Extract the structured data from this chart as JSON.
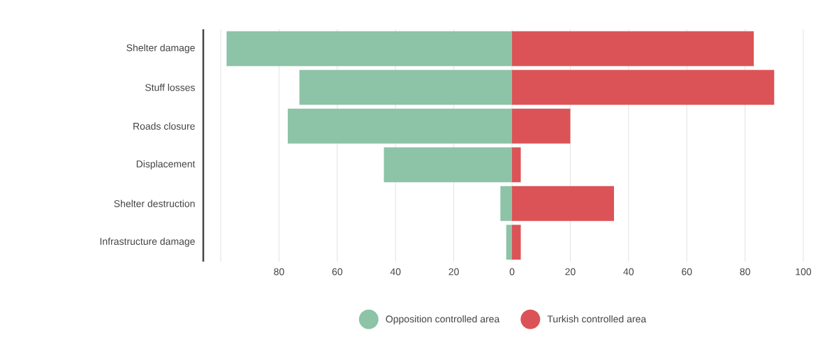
{
  "chart_data": {
    "type": "bar",
    "orientation": "horizontal",
    "stacked": true,
    "categories": [
      "Shelter damage",
      "Stuff losses",
      "Roads closure",
      "Displacement",
      "Shelter destruction",
      "Infrastructure damage"
    ],
    "series": [
      {
        "name": "Opposition controlled area",
        "color": "#8dc3a7",
        "values": [
          -98,
          -73,
          -77,
          -44,
          -4,
          -2
        ]
      },
      {
        "name": "Turkish controlled area",
        "color": "#db5356",
        "values": [
          83,
          90,
          20,
          3,
          35,
          3
        ]
      }
    ],
    "xlim": [
      -106,
      100
    ],
    "xticks": [
      {
        "value": -100,
        "label": null
      },
      {
        "value": -80,
        "label": "80"
      },
      {
        "value": -60,
        "label": "60"
      },
      {
        "value": -40,
        "label": "40"
      },
      {
        "value": -20,
        "label": "20"
      },
      0,
      20,
      40,
      60,
      80,
      100
    ],
    "grid": "x",
    "legend": "bottom"
  }
}
